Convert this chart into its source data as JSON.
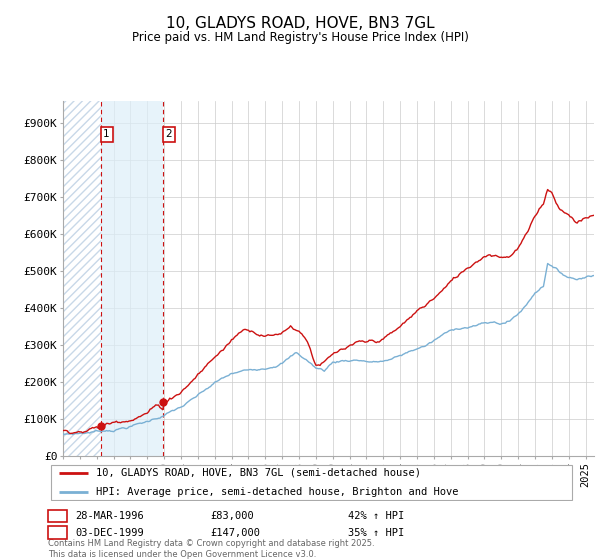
{
  "title": "10, GLADYS ROAD, HOVE, BN3 7GL",
  "subtitle": "Price paid vs. HM Land Registry's House Price Index (HPI)",
  "ylabel_ticks": [
    "£0",
    "£100K",
    "£200K",
    "£300K",
    "£400K",
    "£500K",
    "£600K",
    "£700K",
    "£800K",
    "£900K"
  ],
  "ytick_values": [
    0,
    100000,
    200000,
    300000,
    400000,
    500000,
    600000,
    700000,
    800000,
    900000
  ],
  "ylim": [
    0,
    960000
  ],
  "xlim_start": 1994.0,
  "xlim_end": 2025.5,
  "hpi_color": "#7ab0d4",
  "price_color": "#cc1111",
  "background_color": "#ffffff",
  "grid_color": "#cccccc",
  "hatch_color": "#d8e8f0",
  "shade_color": "#ddeeff",
  "transaction1": {
    "label": "1",
    "date": "28-MAR-1996",
    "price": 83000,
    "hpi_note": "42% ↑ HPI",
    "year": 1996.24
  },
  "transaction2": {
    "label": "2",
    "date": "03-DEC-1999",
    "price": 147000,
    "hpi_note": "35% ↑ HPI",
    "year": 1999.92
  },
  "legend_line1": "10, GLADYS ROAD, HOVE, BN3 7GL (semi-detached house)",
  "legend_line2": "HPI: Average price, semi-detached house, Brighton and Hove",
  "footnote": "Contains HM Land Registry data © Crown copyright and database right 2025.\nThis data is licensed under the Open Government Licence v3.0."
}
